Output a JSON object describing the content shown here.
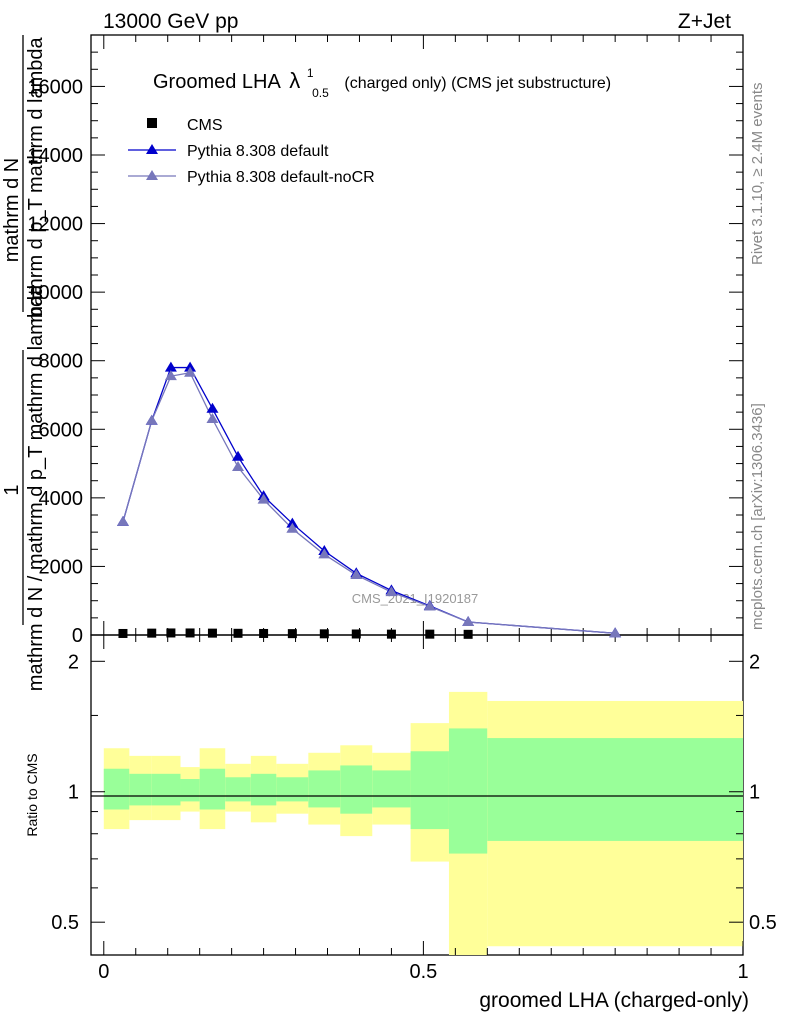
{
  "header": {
    "left": "13000 GeV pp",
    "right": "Z+Jet"
  },
  "side_labels": {
    "rivet": "Rivet 3.1.10, ≥ 2.4M events",
    "mcplots": "mcplots.cern.ch [arXiv:1306.3436]"
  },
  "watermark": "CMS_2021_I1920187",
  "chart_data": [
    {
      "type": "line",
      "title": "Groomed LHA",
      "title_symbol": "λ",
      "title_sup": "1",
      "title_sub": "0.5",
      "title_suffix": "(charged only) (CMS jet substructure)",
      "ylabel_top": "1",
      "ylabel_num": "mathrm d N",
      "ylabel_den": "mathrm d N / mathrm d p_T mathrm d lambda",
      "ylabel_den2": "mathrm d p_T mathrm d lambda",
      "ylim": [
        0,
        17500
      ],
      "yticks": [
        0,
        2000,
        4000,
        6000,
        8000,
        10000,
        12000,
        14000,
        16000
      ],
      "ytick_labels": [
        "0",
        "2000",
        "4000",
        "6000",
        "8000",
        "10000",
        "12000",
        "14000",
        "16000"
      ],
      "xlim": [
        -0.02,
        1.0
      ],
      "legend_position": "top-left",
      "series": [
        {
          "name": "CMS",
          "color": "#000000",
          "marker": "square",
          "x": [
            0.03,
            0.075,
            0.105,
            0.135,
            0.17,
            0.21,
            0.25,
            0.295,
            0.345,
            0.395,
            0.45,
            0.51,
            0.57
          ],
          "y": [
            30,
            40,
            45,
            45,
            40,
            35,
            30,
            25,
            20,
            15,
            10,
            10,
            5
          ]
        },
        {
          "name": "Pythia 8.308 default",
          "color": "#0000cc",
          "marker": "triangle",
          "x": [
            0.03,
            0.075,
            0.105,
            0.135,
            0.17,
            0.21,
            0.25,
            0.295,
            0.345,
            0.395,
            0.45,
            0.51,
            0.57,
            0.8
          ],
          "y": [
            3300,
            6250,
            7800,
            7800,
            6600,
            5200,
            4050,
            3250,
            2450,
            1800,
            1300,
            850,
            380,
            50
          ]
        },
        {
          "name": "Pythia 8.308 default-noCR",
          "color": "#7777bb",
          "marker": "triangle",
          "x": [
            0.03,
            0.075,
            0.105,
            0.135,
            0.17,
            0.21,
            0.25,
            0.295,
            0.345,
            0.395,
            0.45,
            0.51,
            0.57,
            0.8
          ],
          "y": [
            3300,
            6250,
            7550,
            7650,
            6300,
            4900,
            3950,
            3100,
            2350,
            1750,
            1250,
            830,
            380,
            50
          ]
        }
      ]
    },
    {
      "type": "area",
      "ylabel": "Ratio to CMS",
      "xlabel": "groomed LHA (charged-only)",
      "ylim": [
        0.42,
        2.3
      ],
      "log_y": true,
      "yticks": [
        0.5,
        1,
        2
      ],
      "ytick_labels": [
        "0.5",
        "1",
        "2"
      ],
      "xlim": [
        -0.02,
        1.0
      ],
      "xticks": [
        0,
        0.5,
        1
      ],
      "xtick_labels": [
        "0",
        "0.5",
        "1"
      ],
      "bins": [
        0,
        0.04,
        0.075,
        0.12,
        0.15,
        0.19,
        0.23,
        0.27,
        0.32,
        0.37,
        0.42,
        0.48,
        0.54,
        0.6,
        1.0
      ],
      "band_outer_low": [
        0.82,
        0.86,
        0.86,
        0.9,
        0.82,
        0.9,
        0.85,
        0.89,
        0.84,
        0.79,
        0.84,
        0.69,
        0.42,
        0.44
      ],
      "band_outer_high": [
        1.26,
        1.21,
        1.21,
        1.14,
        1.26,
        1.16,
        1.21,
        1.16,
        1.23,
        1.28,
        1.23,
        1.44,
        1.7,
        1.62
      ],
      "band_inner_low": [
        0.91,
        0.93,
        0.93,
        0.95,
        0.91,
        0.95,
        0.93,
        0.95,
        0.92,
        0.89,
        0.92,
        0.82,
        0.72,
        0.77
      ],
      "band_inner_high": [
        1.13,
        1.1,
        1.1,
        1.07,
        1.13,
        1.08,
        1.1,
        1.08,
        1.12,
        1.15,
        1.12,
        1.24,
        1.4,
        1.33
      ],
      "band_outer_color": "#ffff99",
      "band_inner_color": "#99ff99"
    }
  ]
}
